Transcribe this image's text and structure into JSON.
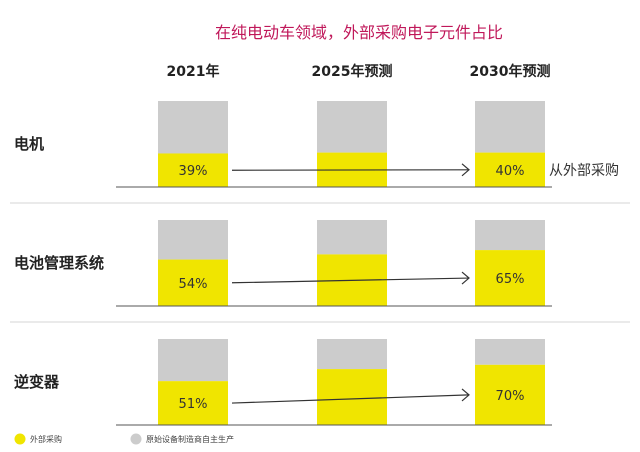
{
  "chart_data": {
    "type": "bar",
    "title": "在纯电动车领域，外部采购电子元件占比",
    "columns": [
      "2021年",
      "2025年预测",
      "2030年预测"
    ],
    "rows": [
      {
        "label": "电机",
        "values": [
          39,
          40,
          40
        ],
        "value_labels": [
          "39%",
          "",
          "40%"
        ],
        "annotation": "从外部采购"
      },
      {
        "label": "电池管理系统",
        "values": [
          54,
          60,
          65
        ],
        "value_labels": [
          "54%",
          "",
          "65%"
        ],
        "annotation": ""
      },
      {
        "label": "逆变器",
        "values": [
          51,
          65,
          70
        ],
        "value_labels": [
          "51%",
          "",
          "70%"
        ],
        "annotation": ""
      }
    ],
    "ylim": [
      0,
      100
    ],
    "series": [
      {
        "name": "外部采购",
        "color": "#f0e500"
      },
      {
        "name": "原始设备制造商自主生产",
        "color": "#cccccc"
      }
    ],
    "legend_position": "bottom-left"
  }
}
